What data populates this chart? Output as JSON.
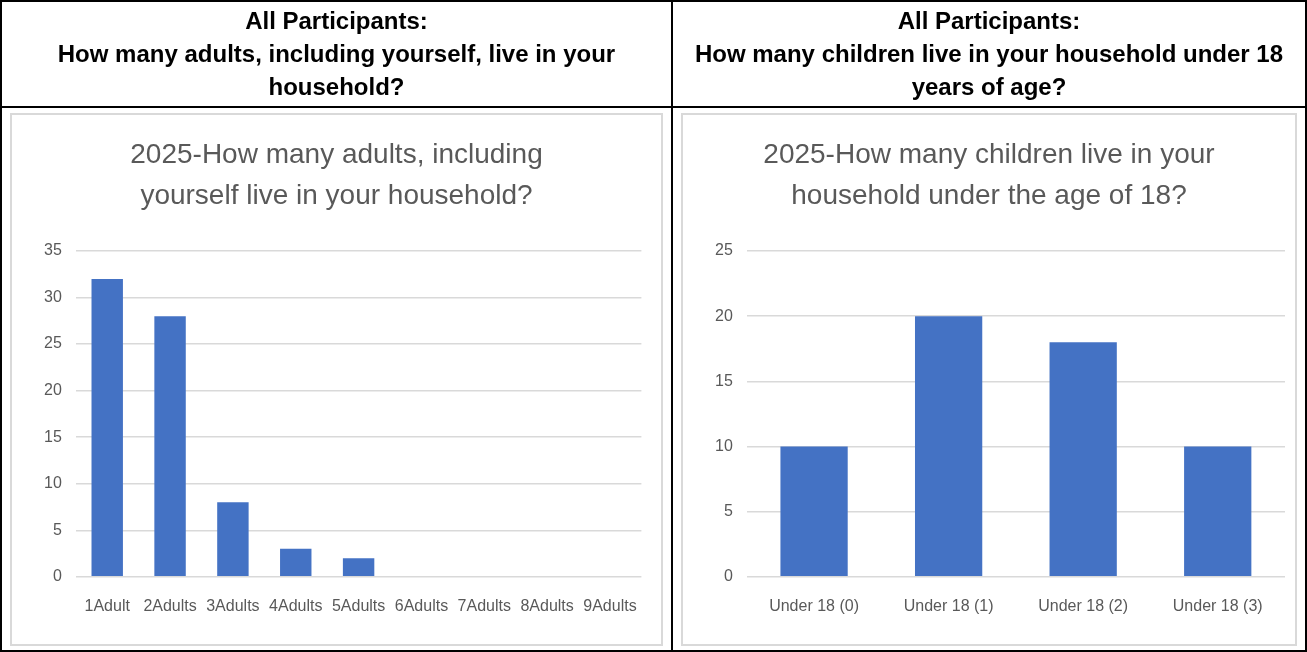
{
  "chart_data": [
    {
      "type": "bar",
      "title": "All Participants:\nHow many adults, including yourself, live in your household?",
      "subtitle": "2025-How many adults, including yourself live in your household?",
      "categories": [
        "1Adult",
        "2Adults",
        "3Adults",
        "4Adults",
        "5Adults",
        "6Adults",
        "7Adults",
        "8Adults",
        "9Adults"
      ],
      "values": [
        32,
        28,
        8,
        3,
        2,
        0,
        0,
        0,
        0
      ],
      "color": "#4472c4",
      "ylim": [
        0,
        35
      ],
      "yticks": [
        0,
        5,
        10,
        15,
        20,
        25,
        30,
        35
      ],
      "grid": "y"
    },
    {
      "type": "bar",
      "title": "All Participants:\nHow many children live in your household under 18 years of age?",
      "subtitle": "2025-How many children live in your household under the age of 18?",
      "categories": [
        "Under 18 (0)",
        "Under 18 (1)",
        "Under 18 (2)",
        "Under 18 (3)"
      ],
      "values": [
        10,
        20,
        18,
        10
      ],
      "color": "#4472c4",
      "ylim": [
        0,
        25
      ],
      "yticks": [
        0,
        5,
        10,
        15,
        20,
        25
      ],
      "grid": "y"
    }
  ]
}
